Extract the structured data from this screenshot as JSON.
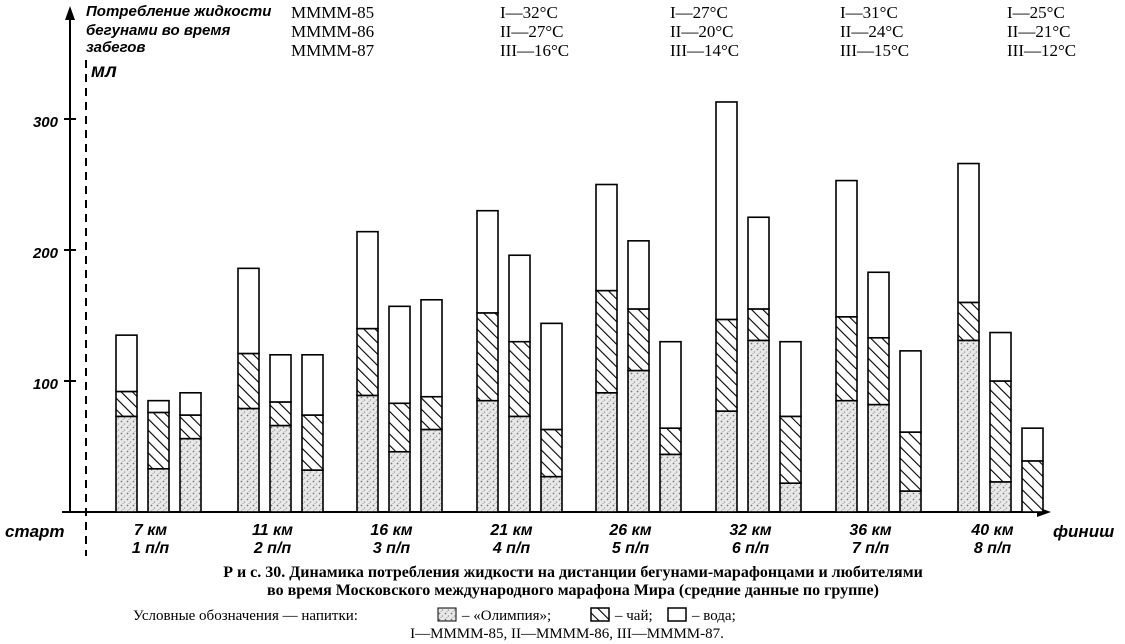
{
  "chart_data": {
    "type": "bar",
    "stacked": true,
    "ylabel_lines": [
      "Потребление жидкости",
      "бегунами во время",
      "забегов"
    ],
    "yunit": "мл",
    "ylim": [
      0,
      400
    ],
    "yticks": [
      100,
      200,
      300
    ],
    "grid": false,
    "start_label": "старт",
    "finish_label": "финиш",
    "categories": [
      {
        "km": "7 км",
        "point": "1 п/п"
      },
      {
        "km": "11 км",
        "point": "2 п/п"
      },
      {
        "km": "16 км",
        "point": "3 п/п"
      },
      {
        "km": "21 км",
        "point": "4 п/п"
      },
      {
        "km": "26 км",
        "point": "5 п/п"
      },
      {
        "km": "32 км",
        "point": "6 п/п"
      },
      {
        "km": "36 км",
        "point": "7 п/п"
      },
      {
        "km": "40 км",
        "point": "8 п/п"
      }
    ],
    "race_names": [
      "ММММ-85",
      "ММММ-86",
      "ММММ-87"
    ],
    "temperatures": [
      [
        "I—32°C",
        "II—27°C",
        "III—16°C"
      ],
      [
        "I—27°C",
        "II—20°C",
        "III—14°C"
      ],
      [
        "I—31°C",
        "II—24°C",
        "III—15°C"
      ],
      [
        "I—25°C",
        "II—21°C",
        "III—12°C"
      ]
    ],
    "series_keys": [
      "olympia",
      "tea",
      "water"
    ],
    "series_fill": [
      "dotted",
      "hatched",
      "white"
    ],
    "bars": [
      [
        [
          73,
          19,
          43
        ],
        [
          33,
          43,
          9
        ],
        [
          56,
          18,
          17
        ]
      ],
      [
        [
          79,
          42,
          65
        ],
        [
          66,
          18,
          36
        ],
        [
          32,
          42,
          46
        ]
      ],
      [
        [
          89,
          51,
          74
        ],
        [
          46,
          37,
          74
        ],
        [
          63,
          25,
          74
        ]
      ],
      [
        [
          85,
          67,
          78
        ],
        [
          73,
          57,
          66
        ],
        [
          27,
          36,
          81
        ]
      ],
      [
        [
          91,
          78,
          81
        ],
        [
          108,
          47,
          52
        ],
        [
          44,
          20,
          66
        ]
      ],
      [
        [
          77,
          70,
          166
        ],
        [
          131,
          24,
          70
        ],
        [
          22,
          51,
          57
        ]
      ],
      [
        [
          85,
          64,
          104
        ],
        [
          82,
          51,
          50
        ],
        [
          16,
          45,
          62
        ]
      ],
      [
        [
          131,
          29,
          106
        ],
        [
          23,
          77,
          37
        ],
        [
          0,
          39,
          25
        ]
      ]
    ]
  },
  "caption": {
    "line1": "Р и с.  30.  Динамика потребления жидкости на дистанции бегунами-марафонцами и любителями",
    "line2": "во время Московского международного марафона Мира (средние данные по группе)"
  },
  "legend": {
    "prefix": "Условные обозначения — напитки:",
    "olympia": "– «Олимпия»;",
    "tea": "– чай;",
    "water": "– вода;",
    "line2": "I—ММММ-85, II—ММММ-86, III—ММММ-87."
  }
}
